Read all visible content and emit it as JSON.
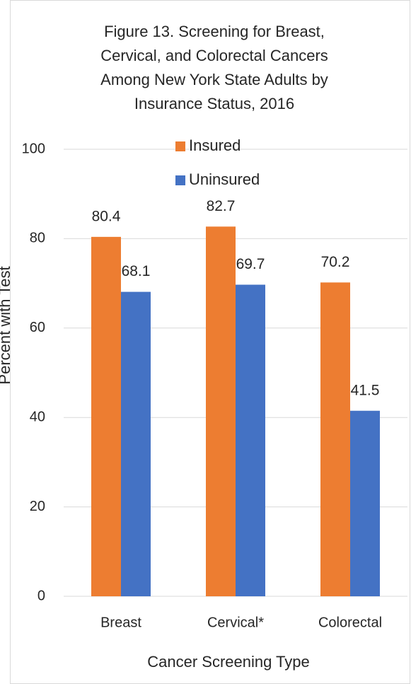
{
  "chart_data": {
    "type": "bar",
    "title": [
      "Figure 13. Screening for Breast,",
      "Cervical, and Colorectal Cancers",
      "Among New York State Adults by",
      "Insurance Status, 2016"
    ],
    "x_label": "Cancer Screening Type",
    "y_label": "Percent with Test",
    "categories": [
      "Breast",
      "Cervical*",
      "Colorectal"
    ],
    "series": [
      {
        "name": "Insured",
        "color": "#ED7D31",
        "values": [
          80.4,
          82.7,
          70.2
        ]
      },
      {
        "name": "Uninsured",
        "color": "#4472C4",
        "values": [
          68.1,
          69.7,
          41.5
        ]
      }
    ],
    "ylim": [
      0,
      100
    ],
    "yticks": [
      0,
      20,
      40,
      60,
      80,
      100
    ],
    "grid": true,
    "legend": "top"
  }
}
